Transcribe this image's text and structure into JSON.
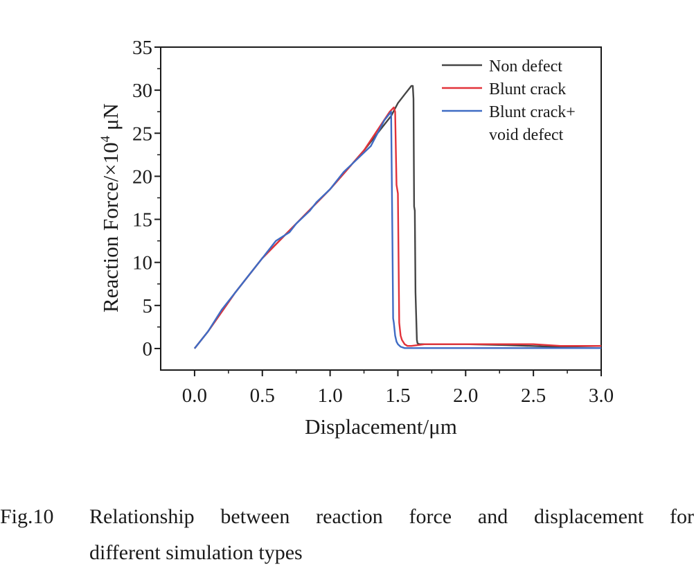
{
  "chart_data": {
    "type": "line",
    "title": "",
    "xlabel": "Displacement/μm",
    "ylabel_main": "Reaction Force/×10",
    "ylabel_exp": "4",
    "ylabel_unit": " μN",
    "xlim": [
      -0.25,
      3.0
    ],
    "ylim": [
      -2.5,
      35
    ],
    "xticks": [
      0.0,
      0.5,
      1.0,
      1.5,
      2.0,
      2.5,
      3.0
    ],
    "xtick_labels": [
      "0.0",
      "0.5",
      "1.0",
      "1.5",
      "2.0",
      "2.5",
      "3.0"
    ],
    "yticks": [
      0,
      5,
      10,
      15,
      20,
      25,
      30,
      35
    ],
    "ytick_labels": [
      "0",
      "5",
      "10",
      "15",
      "20",
      "25",
      "30",
      "35"
    ],
    "legend_position": "top-right",
    "series": [
      {
        "name": "Non defect",
        "color": "#454545",
        "x": [
          0.0,
          0.1,
          0.3,
          0.5,
          0.75,
          1.0,
          1.25,
          1.45,
          1.5,
          1.55,
          1.6,
          1.61,
          1.615,
          1.62,
          1.625,
          1.63,
          1.64,
          1.645,
          1.66,
          1.7,
          1.9,
          2.0,
          2.3,
          2.65,
          3.0
        ],
        "y": [
          0,
          2.0,
          6.5,
          10.5,
          14.5,
          18.5,
          23.0,
          27.0,
          28.5,
          29.5,
          30.5,
          30.5,
          29.0,
          16.5,
          16.0,
          6.5,
          1.0,
          0.6,
          0.5,
          0.5,
          0.5,
          0.5,
          0.4,
          0.2,
          0.3
        ]
      },
      {
        "name": "Blunt crack",
        "color": "#e2323a",
        "x": [
          0.0,
          0.1,
          0.3,
          0.5,
          0.75,
          1.0,
          1.25,
          1.44,
          1.47,
          1.48,
          1.49,
          1.5,
          1.51,
          1.52,
          1.53,
          1.55,
          1.57,
          1.6,
          1.7,
          2.0,
          2.5,
          2.7,
          3.0
        ],
        "y": [
          0,
          2.0,
          6.5,
          10.5,
          14.5,
          18.5,
          23.0,
          27.5,
          28.0,
          27.5,
          19.0,
          18.0,
          3.0,
          1.5,
          1.0,
          0.5,
          0.3,
          0.3,
          0.5,
          0.5,
          0.5,
          0.3,
          0.3
        ]
      },
      {
        "name": "Blunt crack+ void defect",
        "color": "#3f6bc4",
        "x": [
          0.0,
          0.05,
          0.1,
          0.2,
          0.3,
          0.4,
          0.5,
          0.6,
          0.7,
          0.75,
          0.85,
          0.9,
          1.0,
          1.1,
          1.2,
          1.3,
          1.35,
          1.4,
          1.44,
          1.45,
          1.46,
          1.465,
          1.47,
          1.48,
          1.49,
          1.5,
          1.52,
          1.55,
          1.6,
          2.0,
          3.0
        ],
        "y": [
          0,
          1.0,
          2.0,
          4.5,
          6.5,
          8.5,
          10.5,
          12.5,
          13.5,
          14.5,
          16.0,
          17.0,
          18.5,
          20.5,
          22.0,
          23.5,
          25.0,
          26.5,
          27.3,
          27.5,
          12.5,
          3.5,
          3.0,
          1.5,
          0.8,
          0.5,
          0.2,
          0.05,
          0.05,
          0.05,
          0.05
        ]
      }
    ],
    "legend_entries": [
      "Non defect",
      "Blunt crack",
      "Blunt crack+",
      "void defect"
    ]
  },
  "caption": {
    "label": "Fig.10",
    "line1": "Relationship between reaction force and displacement for",
    "line2": "different simulation types"
  }
}
